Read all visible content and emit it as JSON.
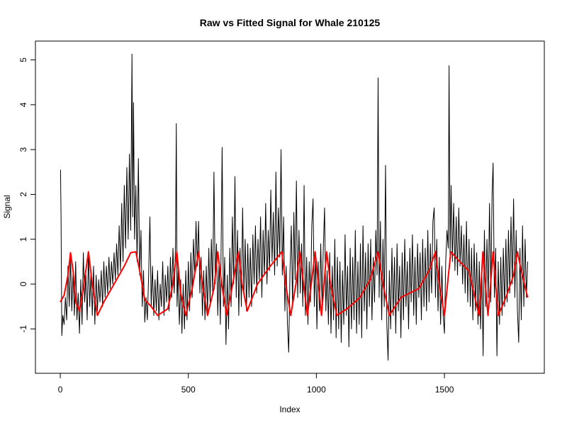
{
  "chart_data": {
    "type": "line",
    "title": "Raw vs Fitted Signal for Whale 210125",
    "x_label": "Index",
    "y_label": "Signal",
    "xlim": [
      -97,
      1890
    ],
    "ylim": [
      -1.99,
      5.42
    ],
    "xticks": [
      0,
      500,
      1000,
      1500
    ],
    "yticks": [
      -1,
      0,
      1,
      2,
      3,
      4,
      5
    ],
    "grid": false,
    "series": [
      {
        "color": "#000000",
        "width": 1,
        "x": [
          1,
          3,
          6,
          10,
          15,
          20,
          25,
          30,
          35,
          40,
          45,
          50,
          55,
          60,
          65,
          70,
          75,
          80,
          85,
          90,
          95,
          100,
          105,
          110,
          115,
          120,
          125,
          130,
          135,
          140,
          145,
          150,
          155,
          160,
          165,
          170,
          175,
          180,
          185,
          190,
          195,
          200,
          205,
          210,
          215,
          220,
          225,
          230,
          235,
          240,
          245,
          250,
          255,
          260,
          265,
          270,
          275,
          280,
          283,
          286,
          290,
          295,
          300,
          305,
          310,
          315,
          320,
          325,
          330,
          335,
          340,
          345,
          350,
          355,
          360,
          365,
          370,
          375,
          380,
          385,
          390,
          395,
          400,
          405,
          410,
          415,
          420,
          425,
          430,
          435,
          440,
          445,
          450,
          453,
          456,
          460,
          465,
          470,
          475,
          480,
          485,
          490,
          495,
          500,
          505,
          510,
          515,
          520,
          525,
          530,
          535,
          540,
          545,
          550,
          555,
          560,
          565,
          570,
          575,
          580,
          585,
          590,
          595,
          600,
          605,
          610,
          615,
          620,
          625,
          632,
          637,
          642,
          647,
          652,
          657,
          662,
          667,
          672,
          677,
          682,
          687,
          692,
          697,
          702,
          707,
          712,
          717,
          722,
          727,
          732,
          737,
          742,
          747,
          752,
          757,
          762,
          767,
          772,
          777,
          782,
          787,
          792,
          797,
          802,
          807,
          812,
          817,
          822,
          827,
          832,
          837,
          842,
          847,
          852,
          857,
          862,
          867,
          872,
          877,
          882,
          887,
          892,
          897,
          902,
          907,
          912,
          917,
          922,
          927,
          932,
          937,
          942,
          947,
          952,
          957,
          962,
          967,
          972,
          977,
          982,
          987,
          992,
          997,
          1002,
          1007,
          1012,
          1017,
          1022,
          1027,
          1032,
          1037,
          1042,
          1047,
          1052,
          1057,
          1062,
          1067,
          1072,
          1077,
          1082,
          1087,
          1092,
          1097,
          1102,
          1107,
          1112,
          1117,
          1122,
          1127,
          1132,
          1137,
          1142,
          1147,
          1152,
          1157,
          1162,
          1167,
          1172,
          1177,
          1182,
          1187,
          1192,
          1197,
          1202,
          1207,
          1212,
          1217,
          1222,
          1227,
          1232,
          1237,
          1241,
          1245,
          1250,
          1255,
          1260,
          1265,
          1270,
          1275,
          1280,
          1285,
          1290,
          1295,
          1300,
          1305,
          1310,
          1315,
          1320,
          1325,
          1330,
          1335,
          1340,
          1345,
          1350,
          1355,
          1360,
          1365,
          1370,
          1375,
          1380,
          1385,
          1390,
          1395,
          1400,
          1405,
          1410,
          1415,
          1420,
          1425,
          1430,
          1435,
          1440,
          1445,
          1450,
          1455,
          1460,
          1465,
          1470,
          1475,
          1480,
          1485,
          1490,
          1495,
          1500,
          1505,
          1510,
          1515,
          1518,
          1522,
          1526,
          1531,
          1536,
          1541,
          1546,
          1551,
          1556,
          1561,
          1566,
          1571,
          1576,
          1581,
          1586,
          1591,
          1596,
          1601,
          1606,
          1611,
          1616,
          1621,
          1626,
          1631,
          1636,
          1641,
          1646,
          1651,
          1656,
          1661,
          1666,
          1671,
          1676,
          1681,
          1686,
          1690,
          1695,
          1700,
          1705,
          1710,
          1715,
          1720,
          1725,
          1730,
          1735,
          1740,
          1745,
          1750,
          1755,
          1760,
          1765,
          1770,
          1775,
          1780,
          1785,
          1790,
          1795,
          1800,
          1805,
          1810,
          1815,
          1820,
          1825
        ],
        "values": [
          2.55,
          1.5,
          -1.15,
          -0.7,
          -0.9,
          -0.3,
          -0.8,
          0.4,
          -0.5,
          0.6,
          -0.6,
          0.3,
          -0.7,
          0.5,
          -0.8,
          -0.2,
          -1.1,
          0.1,
          -0.9,
          0.7,
          -0.4,
          0.2,
          -0.8,
          0.7,
          -0.5,
          0.3,
          -0.7,
          0.4,
          -0.9,
          0.2,
          -0.6,
          0.1,
          -0.4,
          0.3,
          -0.5,
          0.5,
          -0.3,
          0.4,
          -0.2,
          0.6,
          -0.1,
          0.5,
          0.0,
          0.7,
          0.1,
          0.9,
          0.2,
          1.3,
          0.3,
          1.8,
          0.5,
          2.2,
          0.8,
          2.6,
          1.0,
          2.9,
          1.2,
          5.13,
          1.5,
          4.05,
          1.0,
          2.2,
          0.5,
          2.8,
          0.2,
          1.2,
          -0.5,
          0.3,
          -0.85,
          -0.3,
          -0.8,
          0.2,
          1.5,
          -0.5,
          0.4,
          -0.7,
          0.1,
          -0.6,
          0.3,
          -0.8,
          0.0,
          -0.5,
          0.5,
          -0.7,
          0.2,
          -0.4,
          0.4,
          -0.6,
          0.6,
          -0.3,
          0.8,
          -0.2,
          0.9,
          3.58,
          -0.5,
          0.3,
          -0.9,
          0.1,
          -1.1,
          0.0,
          -1.0,
          0.3,
          -0.8,
          0.5,
          -0.6,
          0.7,
          -0.3,
          1.0,
          0.2,
          1.4,
          0.4,
          1.4,
          -0.2,
          0.6,
          -0.7,
          0.3,
          -0.8,
          0.4,
          -0.6,
          0.8,
          -0.4,
          1.0,
          -0.2,
          2.5,
          0.0,
          0.9,
          -0.7,
          0.5,
          -0.9,
          3.05,
          -0.5,
          0.6,
          -1.35,
          0.2,
          -1.0,
          0.8,
          -0.5,
          1.5,
          0.0,
          2.4,
          -0.3,
          1.2,
          -0.7,
          0.8,
          -0.5,
          1.7,
          -0.2,
          1.0,
          -0.6,
          0.9,
          -0.3,
          0.8,
          -0.5,
          1.1,
          0.0,
          1.3,
          -0.2,
          1.0,
          0.1,
          1.5,
          -0.3,
          1.2,
          0.2,
          1.8,
          0.0,
          1.2,
          0.3,
          2.1,
          0.5,
          1.6,
          0.2,
          2.5,
          0.4,
          1.7,
          0.6,
          3.0,
          0.2,
          1.5,
          -0.6,
          0.4,
          -0.9,
          -1.52,
          0.3,
          1.3,
          -0.5,
          1.6,
          0.1,
          2.3,
          -0.3,
          1.2,
          -0.2,
          0.9,
          -0.5,
          2.2,
          -0.7,
          0.6,
          -0.9,
          0.5,
          -0.4,
          1.3,
          1.9,
          -0.5,
          0.7,
          -1.0,
          0.5,
          -0.6,
          0.9,
          -0.4,
          0.8,
          1.7,
          -0.6,
          0.3,
          -0.9,
          0.7,
          -1.1,
          0.4,
          -0.8,
          1.0,
          -1.2,
          0.6,
          -1.0,
          0.5,
          -1.3,
          0.3,
          -0.9,
          1.1,
          -0.7,
          0.4,
          -1.4,
          0.8,
          -1.0,
          0.6,
          -0.8,
          1.2,
          -1.1,
          0.5,
          -0.9,
          0.9,
          -1.2,
          1.3,
          -0.6,
          0.7,
          -1.0,
          0.9,
          -0.5,
          1.0,
          -0.8,
          0.6,
          -0.4,
          1.2,
          0.2,
          4.6,
          -0.3,
          1.4,
          -0.8,
          1.0,
          -0.5,
          2.65,
          -0.9,
          -1.7,
          0.3,
          -1.0,
          0.8,
          -0.7,
          0.6,
          -1.1,
          0.9,
          -0.6,
          0.4,
          -1.2,
          0.7,
          -0.8,
          1.0,
          -0.5,
          0.5,
          -1.0,
          0.8,
          -0.4,
          1.1,
          -0.7,
          0.6,
          -0.9,
          0.9,
          -0.3,
          0.7,
          -0.8,
          1.0,
          -0.5,
          0.8,
          -0.6,
          1.2,
          -0.4,
          0.9,
          -0.2,
          1.4,
          1.7,
          -0.3,
          1.0,
          -0.6,
          0.6,
          -0.9,
          0.4,
          -0.7,
          -1.1,
          0.5,
          1.2,
          0.8,
          4.87,
          0.6,
          2.2,
          0.5,
          1.8,
          0.3,
          1.5,
          0.2,
          1.7,
          0.4,
          1.3,
          0.0,
          1.1,
          -0.2,
          1.4,
          -0.4,
          1.0,
          -0.5,
          0.8,
          -0.8,
          0.9,
          -0.6,
          0.7,
          -0.9,
          0.5,
          -1.0,
          0.4,
          -1.6,
          1.2,
          -0.5,
          1.0,
          -0.3,
          1.8,
          -0.4,
          2.0,
          2.7,
          -0.3,
          0.8,
          -1.6,
          0.5,
          -0.9,
          0.6,
          -0.7,
          0.8,
          -0.5,
          1.0,
          -0.4,
          1.2,
          -0.2,
          1.5,
          0.0,
          1.9,
          -0.3,
          1.2,
          -0.6,
          -1.3,
          0.8,
          -0.8,
          1.3,
          -0.5,
          1.0,
          -0.3,
          0.5
        ]
      },
      {
        "color": "#ff0000",
        "width": 2,
        "x": [
          0,
          15,
          30,
          40,
          50,
          60,
          75,
          90,
          110,
          125,
          145,
          170,
          210,
          250,
          275,
          295,
          310,
          330,
          355,
          380,
          420,
          440,
          455,
          470,
          490,
          515,
          540,
          555,
          575,
          600,
          615,
          630,
          650,
          670,
          695,
          710,
          730,
          770,
          820,
          865,
          880,
          900,
          920,
          935,
          950,
          965,
          980,
          995,
          1008,
          1020,
          1030,
          1040,
          1055,
          1080,
          1120,
          1170,
          1210,
          1240,
          1260,
          1285,
          1330,
          1400,
          1440,
          1465,
          1480,
          1500,
          1512,
          1525,
          1560,
          1595,
          1615,
          1635,
          1643,
          1650,
          1660,
          1670,
          1680,
          1690,
          1700,
          1710,
          1740,
          1770,
          1785,
          1800,
          1825
        ],
        "values": [
          -0.4,
          -0.25,
          0.2,
          0.7,
          0.3,
          -0.4,
          -0.6,
          -0.1,
          0.72,
          0.0,
          -0.7,
          -0.4,
          0.0,
          0.4,
          0.7,
          0.72,
          0.3,
          -0.35,
          -0.5,
          -0.7,
          -0.55,
          0.0,
          0.72,
          -0.2,
          -0.7,
          -0.1,
          0.72,
          0.0,
          -0.7,
          -0.1,
          0.72,
          0.0,
          -0.7,
          -0.1,
          0.72,
          0.0,
          -0.6,
          0.0,
          0.4,
          0.72,
          0.0,
          -0.7,
          0.0,
          0.72,
          0.0,
          -0.7,
          0.0,
          0.72,
          0.0,
          -0.7,
          0.0,
          0.72,
          0.0,
          -0.7,
          -0.55,
          -0.3,
          0.1,
          0.72,
          0.0,
          -0.7,
          -0.3,
          -0.1,
          0.3,
          0.72,
          0.0,
          -0.7,
          0.0,
          0.72,
          0.5,
          0.3,
          -0.2,
          -0.7,
          0.0,
          0.72,
          0.0,
          -0.7,
          0.0,
          0.72,
          0.0,
          -0.7,
          -0.3,
          0.2,
          0.72,
          0.3,
          -0.3
        ]
      }
    ]
  }
}
